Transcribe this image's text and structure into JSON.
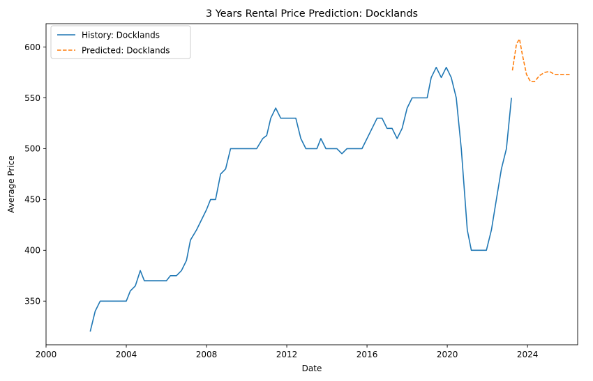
{
  "chart_data": {
    "type": "line",
    "title": "3 Years Rental Price Prediction: Docklands",
    "xlabel": "Date",
    "ylabel": "Average Price",
    "xlim": [
      2000,
      2026.5
    ],
    "ylim": [
      307,
      623
    ],
    "x_ticks": [
      2000,
      2004,
      2008,
      2012,
      2016,
      2020,
      2024
    ],
    "x_tick_labels": [
      "2000",
      "2004",
      "2008",
      "2012",
      "2016",
      "2020",
      "2024"
    ],
    "y_ticks": [
      350,
      400,
      450,
      500,
      550,
      600
    ],
    "y_tick_labels": [
      "350",
      "400",
      "450",
      "500",
      "550",
      "600"
    ],
    "grid": false,
    "legend_position": "top-left",
    "series": [
      {
        "name": "History: Docklands",
        "color": "#1f77b4",
        "style": "solid",
        "x": [
          2002.2,
          2002.45,
          2002.7,
          2003.0,
          2003.5,
          2004.0,
          2004.2,
          2004.45,
          2004.7,
          2004.9,
          2005.5,
          2006.0,
          2006.2,
          2006.5,
          2006.75,
          2007.0,
          2007.2,
          2007.5,
          2008.0,
          2008.2,
          2008.45,
          2008.7,
          2008.95,
          2009.2,
          2009.5,
          2010.0,
          2010.5,
          2010.8,
          2011.0,
          2011.2,
          2011.45,
          2011.7,
          2012.0,
          2012.45,
          2012.7,
          2012.95,
          2013.5,
          2013.7,
          2013.95,
          2014.5,
          2014.75,
          2015.0,
          2015.5,
          2015.75,
          2016.0,
          2016.25,
          2016.5,
          2016.75,
          2017.0,
          2017.25,
          2017.5,
          2017.75,
          2018.0,
          2018.25,
          2018.5,
          2019.0,
          2019.2,
          2019.45,
          2019.7,
          2019.95,
          2020.2,
          2020.45,
          2020.7,
          2021.0,
          2021.2,
          2021.45,
          2021.95,
          2022.2,
          2022.45,
          2022.7,
          2022.95,
          2023.2
        ],
        "values": [
          320,
          340,
          350,
          350,
          350,
          350,
          360,
          365,
          380,
          370,
          370,
          370,
          375,
          375,
          380,
          390,
          410,
          420,
          440,
          450,
          450,
          475,
          480,
          500,
          500,
          500,
          500,
          510,
          513,
          530,
          540,
          530,
          530,
          530,
          510,
          500,
          500,
          510,
          500,
          500,
          495,
          500,
          500,
          500,
          510,
          520,
          530,
          530,
          520,
          520,
          510,
          520,
          540,
          550,
          550,
          550,
          570,
          580,
          570,
          580,
          570,
          550,
          500,
          420,
          400,
          400,
          400,
          420,
          450,
          480,
          500,
          550
        ]
      },
      {
        "name": "Predicted: Docklands",
        "color": "#ff7f0e",
        "style": "dashed",
        "x": [
          2023.25,
          2023.45,
          2023.6,
          2023.75,
          2023.95,
          2024.15,
          2024.35,
          2024.6,
          2024.85,
          2025.1,
          2025.35,
          2025.6,
          2025.85,
          2026.1
        ],
        "values": [
          577,
          603,
          608,
          592,
          573,
          566,
          566,
          572,
          575,
          576,
          573,
          573,
          573,
          573
        ]
      }
    ]
  }
}
